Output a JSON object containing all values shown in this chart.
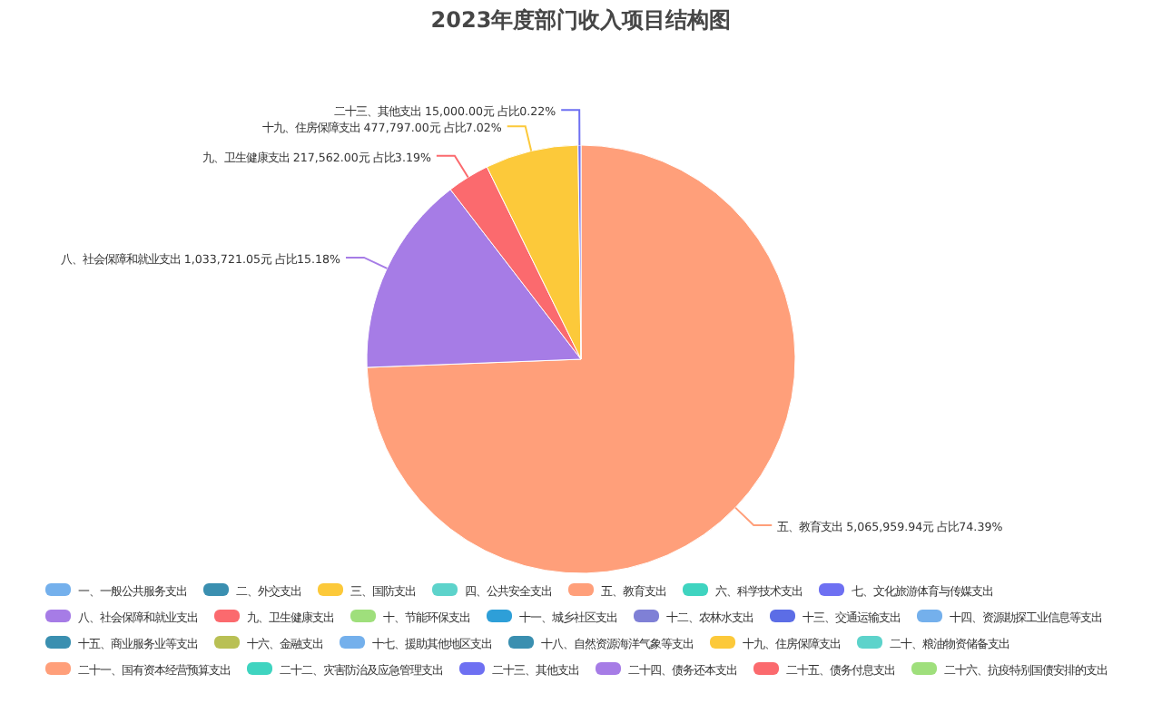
{
  "chart_data": {
    "type": "pie",
    "title": "2023年度部门收入项目结构图",
    "categories": [
      "一、一般公共服务支出",
      "二、外交支出",
      "三、国防支出",
      "四、公共安全支出",
      "五、教育支出",
      "六、科学技术支出",
      "七、文化旅游体育与传媒支出",
      "八、社会保障和就业支出",
      "九、卫生健康支出",
      "十、节能环保支出",
      "十一、城乡社区支出",
      "十二、农林水支出",
      "十三、交通运输支出",
      "十四、资源勘探工业信息等支出",
      "十五、商业服务业等支出",
      "十六、金融支出",
      "十七、援助其他地区支出",
      "十八、自然资源海洋气象等支出",
      "十九、住房保障支出",
      "二十、粮油物资储备支出",
      "二十一、国有资本经营预算支出",
      "二十二、灾害防治及应急管理支出",
      "二十三、其他支出",
      "二十四、债务还本支出",
      "二十五、债务付息支出",
      "二十六、抗疫特别国债安排的支出"
    ],
    "values": [
      0,
      0,
      0,
      0,
      5065959.94,
      0,
      0,
      1033721.05,
      217562.0,
      0,
      0,
      0,
      0,
      0,
      0,
      0,
      0,
      0,
      477797.0,
      0,
      0,
      0,
      15000.0,
      0,
      0,
      0
    ],
    "value_labels": [
      null,
      null,
      null,
      null,
      "5,065,959.94元 占比74.39%",
      null,
      null,
      "1,033,721.05元 占比15.18%",
      "217,562.00元 占比3.19%",
      null,
      null,
      null,
      null,
      null,
      null,
      null,
      null,
      null,
      "477,797.00元 占比7.02%",
      null,
      null,
      null,
      "15,000.00元 占比0.22%",
      null,
      null,
      null
    ],
    "colors": [
      "#74b0ec",
      "#3a8fb0",
      "#fcc93a",
      "#5dd3cb",
      "#ff9f7a",
      "#3fd4c0",
      "#6e70f2",
      "#a67ce6",
      "#fb6a6e",
      "#9fdf7c",
      "#2e9fd8",
      "#7f80d6",
      "#5c6de6",
      "#74b0ec",
      "#3a8fb0",
      "#b9c054",
      "#74b0ec",
      "#3a8fb0",
      "#fcc93a",
      "#5dd3cb",
      "#ff9f7a",
      "#3fd4c0",
      "#6e70f2",
      "#a67ce6",
      "#fb6a6e",
      "#9fdf7c"
    ],
    "legend": "bottom"
  }
}
